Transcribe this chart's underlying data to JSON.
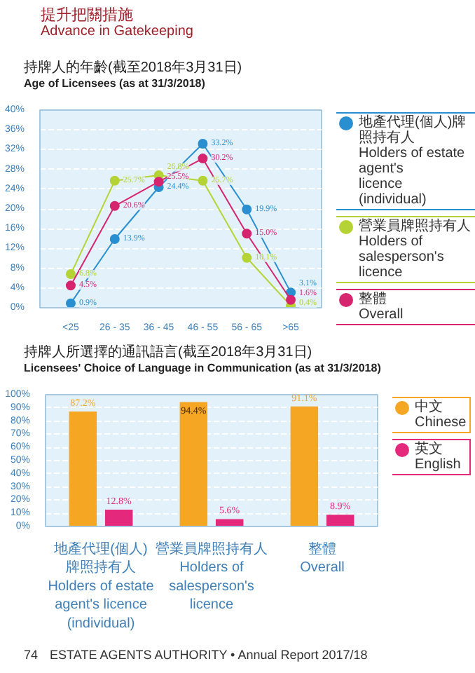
{
  "chart_data": [
    {
      "type": "line",
      "title": "持牌人的年齡(截至2018年3月31日)",
      "subtitle": "Age of Licensees (as at 31/3/2018)",
      "annotations": [
        "提升把關措施",
        "Advance in Gatekeeping"
      ],
      "categories": [
        "<25",
        "26 - 35",
        "36 - 45",
        "46 - 55",
        "56 - 65",
        ">65"
      ],
      "series": [
        {
          "name": "地產代理(個人)牌照持有人\nHolders of estate agent's\nlicence (individual)",
          "color": "#2a8fd1",
          "values": [
            0.9,
            13.9,
            24.4,
            33.2,
            19.9,
            3.1
          ],
          "value_labels": [
            "0.9%",
            "13.9%",
            "24.4%",
            "33.2%",
            "19.9%",
            "3.1%"
          ]
        },
        {
          "name": "營業員牌照持有人\nHolders of salesperson's\nlicence",
          "color": "#b5d334",
          "values": [
            6.8,
            25.7,
            26.8,
            25.7,
            10.1,
            0.4
          ],
          "value_labels": [
            "6.8%",
            "25.7%",
            "26.8%",
            "25.7%",
            "10.1%",
            "0.4%"
          ]
        },
        {
          "name": "整體\nOverall",
          "color": "#d6246e",
          "values": [
            4.5,
            20.6,
            25.5,
            30.2,
            15.0,
            1.6
          ],
          "value_labels": [
            "4.5%",
            "20.6%",
            "25.5%",
            "30.2%",
            "15.0%",
            "1.6%"
          ]
        }
      ],
      "ylim": [
        0,
        40
      ],
      "yticks": [
        {
          "value": 0,
          "label": "0%"
        },
        {
          "value": 4,
          "label": "4%"
        },
        {
          "value": 8,
          "label": "8%"
        },
        {
          "value": 12,
          "label": "12%"
        },
        {
          "value": 16,
          "label": "16%"
        },
        {
          "value": 20,
          "label": "20%"
        },
        {
          "value": 24,
          "label": "24%"
        },
        {
          "value": 28,
          "label": "28%"
        },
        {
          "value": 32,
          "label": "32%"
        },
        {
          "value": 36,
          "label": "36%"
        },
        {
          "value": 40,
          "label": "40%"
        }
      ],
      "grid": "y",
      "legend": "right",
      "marker": "circle",
      "line_style": "solid"
    },
    {
      "type": "bar",
      "title": "持牌人所選擇的通訊語言(截至2018年3月31日)",
      "subtitle": "Licensees' Choice of Language in Communication (as at 31/3/2018)",
      "annotations": [
        "74",
        "ESTATE AGENTS AUTHORITY • Annual Report 2017/18"
      ],
      "categories": [
        "地產代理(個人)\n牌照持有人\nHolders of estate\nagent's licence\n(individual)",
        "營業員牌照持有人\nHolders of\nsalesperson's\nlicence",
        "整體\nOverall"
      ],
      "series": [
        {
          "name": "中文\nChinese",
          "color": "#f5a623",
          "values": [
            87.2,
            94.4,
            91.1
          ],
          "value_labels": [
            "87.2%",
            "94.4%",
            "91.1%"
          ]
        },
        {
          "name": "英文\nEnglish",
          "color": "#e4287c",
          "values": [
            12.8,
            5.6,
            8.9
          ],
          "value_labels": [
            "12.8%",
            "5.6%",
            "8.9%"
          ]
        }
      ],
      "ylim": [
        0,
        100
      ],
      "yticks": [
        {
          "value": 0,
          "label": "0%"
        },
        {
          "value": 10,
          "label": "10%"
        },
        {
          "value": 20,
          "label": "20%"
        },
        {
          "value": 30,
          "label": "30%"
        },
        {
          "value": 40,
          "label": "40%"
        },
        {
          "value": 50,
          "label": "50%"
        },
        {
          "value": 60,
          "label": "60%"
        },
        {
          "value": 70,
          "label": "70%"
        },
        {
          "value": 80,
          "label": "80%"
        },
        {
          "value": 90,
          "label": "90%"
        },
        {
          "value": 100,
          "label": "100%"
        }
      ],
      "grid": "y",
      "legend": "right"
    }
  ]
}
